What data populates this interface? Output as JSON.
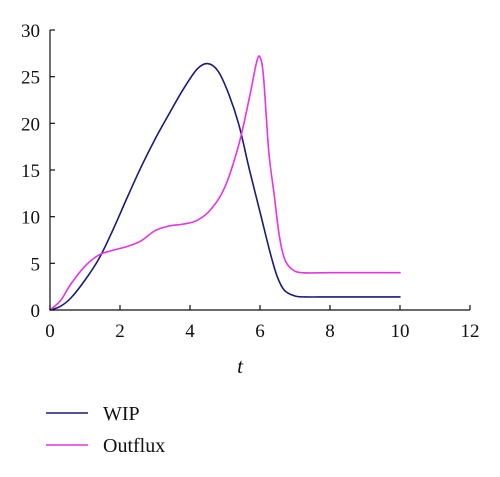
{
  "chart_data": {
    "type": "line",
    "title": "",
    "xlabel": "t",
    "ylabel": "",
    "xlim": [
      0,
      12
    ],
    "ylim": [
      0,
      30
    ],
    "xticks": [
      0,
      2,
      4,
      6,
      8,
      10,
      12
    ],
    "yticks": [
      0,
      5,
      10,
      15,
      20,
      25,
      30
    ],
    "grid": false,
    "legend_position": "bottom-left",
    "series": [
      {
        "name": "WIP",
        "color": "#1a1a7a",
        "x": [
          0,
          0.3,
          0.6,
          1.0,
          1.4,
          1.8,
          2.2,
          2.6,
          3.0,
          3.4,
          3.8,
          4.2,
          4.5,
          4.8,
          5.1,
          5.4,
          5.7,
          6.0,
          6.3,
          6.5,
          6.7,
          7.0,
          7.3,
          8.0,
          9.0,
          10.0
        ],
        "y": [
          0,
          0.4,
          1.3,
          3.2,
          5.5,
          8.6,
          12.0,
          15.3,
          18.3,
          21.0,
          23.6,
          25.8,
          26.4,
          25.6,
          23.2,
          19.8,
          15.0,
          10.5,
          6.0,
          3.5,
          2.1,
          1.5,
          1.4,
          1.4,
          1.4,
          1.4
        ]
      },
      {
        "name": "Outflux",
        "color": "#e633e6",
        "x": [
          0,
          0.3,
          0.6,
          1.0,
          1.4,
          1.8,
          2.2,
          2.6,
          3.0,
          3.4,
          3.8,
          4.2,
          4.6,
          5.0,
          5.4,
          5.7,
          5.9,
          6.0,
          6.1,
          6.25,
          6.4,
          6.55,
          6.7,
          6.9,
          7.2,
          8.0,
          9.0,
          10.0
        ],
        "y": [
          0,
          1.0,
          2.8,
          4.7,
          5.9,
          6.4,
          6.8,
          7.4,
          8.5,
          9.0,
          9.2,
          9.6,
          10.8,
          13.2,
          17.8,
          22.8,
          26.5,
          27.1,
          25.0,
          17.0,
          12.5,
          8.0,
          5.5,
          4.4,
          4.0,
          4.0,
          4.0,
          4.0
        ]
      }
    ]
  }
}
